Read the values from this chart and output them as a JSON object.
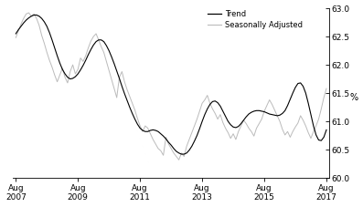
{
  "title": "",
  "ylabel": "%",
  "ylim": [
    60.0,
    63.0
  ],
  "yticks": [
    60.0,
    60.5,
    61.0,
    61.5,
    62.0,
    62.5,
    63.0
  ],
  "xtick_labels": [
    "Aug\n2007",
    "Aug\n2009",
    "Aug\n2011",
    "Aug\n2013",
    "Aug\n2015",
    "Aug\n2017"
  ],
  "legend_labels": [
    "Trend",
    "Seasonally Adjusted"
  ],
  "trend_color": "#000000",
  "seasonal_color": "#bbbbbb",
  "trend_linewidth": 0.8,
  "seasonal_linewidth": 0.7,
  "background_color": "#ffffff",
  "trend": [
    62.55,
    62.62,
    62.68,
    62.74,
    62.79,
    62.83,
    62.86,
    62.88,
    62.88,
    62.86,
    62.82,
    62.76,
    62.68,
    62.57,
    62.44,
    62.3,
    62.16,
    62.03,
    61.92,
    61.84,
    61.78,
    61.75,
    61.76,
    61.79,
    61.84,
    61.91,
    61.99,
    62.08,
    62.18,
    62.27,
    62.35,
    62.41,
    62.44,
    62.44,
    62.41,
    62.34,
    62.25,
    62.14,
    62.02,
    61.89,
    61.76,
    61.62,
    61.49,
    61.37,
    61.25,
    61.14,
    61.04,
    60.95,
    60.88,
    60.84,
    60.82,
    60.82,
    60.84,
    60.85,
    60.84,
    60.82,
    60.78,
    60.74,
    60.69,
    60.63,
    60.58,
    60.52,
    60.47,
    60.44,
    60.42,
    60.42,
    60.44,
    60.49,
    60.56,
    60.65,
    60.75,
    60.87,
    61.0,
    61.12,
    61.22,
    61.3,
    61.35,
    61.36,
    61.33,
    61.27,
    61.18,
    61.09,
    61.0,
    60.94,
    60.9,
    60.89,
    60.91,
    60.96,
    61.02,
    61.08,
    61.13,
    61.16,
    61.18,
    61.19,
    61.19,
    61.18,
    61.17,
    61.15,
    61.13,
    61.12,
    61.11,
    61.1,
    61.11,
    61.14,
    61.19,
    61.28,
    61.39,
    61.5,
    61.6,
    61.67,
    61.68,
    61.62,
    61.5,
    61.32,
    61.12,
    60.92,
    60.76,
    60.67,
    60.66,
    60.72,
    60.85
  ],
  "seasonal": [
    62.48,
    62.6,
    62.72,
    62.82,
    62.9,
    62.92,
    62.86,
    62.9,
    62.82,
    62.7,
    62.52,
    62.38,
    62.22,
    62.08,
    61.96,
    61.82,
    61.7,
    61.82,
    61.94,
    61.78,
    61.68,
    61.88,
    62.0,
    61.84,
    61.92,
    62.12,
    62.06,
    62.16,
    62.3,
    62.42,
    62.5,
    62.55,
    62.44,
    62.32,
    62.22,
    62.06,
    61.9,
    61.74,
    61.58,
    61.42,
    61.78,
    61.88,
    61.7,
    61.56,
    61.44,
    61.32,
    61.2,
    61.05,
    60.92,
    60.82,
    60.92,
    60.88,
    60.78,
    60.68,
    60.6,
    60.52,
    60.48,
    60.4,
    60.72,
    60.6,
    60.52,
    60.44,
    60.38,
    60.32,
    60.44,
    60.38,
    60.56,
    60.68,
    60.8,
    60.92,
    61.04,
    61.18,
    61.32,
    61.38,
    61.46,
    61.32,
    61.22,
    61.14,
    61.04,
    61.12,
    60.98,
    60.88,
    60.8,
    60.7,
    60.78,
    60.68,
    60.82,
    60.92,
    61.02,
    60.96,
    60.88,
    60.82,
    60.74,
    60.88,
    60.96,
    61.04,
    61.18,
    61.28,
    61.38,
    61.3,
    61.2,
    61.1,
    61.0,
    60.86,
    60.76,
    60.82,
    60.72,
    60.82,
    60.9,
    60.97,
    61.1,
    61.02,
    60.92,
    60.8,
    60.7,
    60.82,
    60.92,
    61.04,
    61.22,
    61.42,
    61.58
  ]
}
